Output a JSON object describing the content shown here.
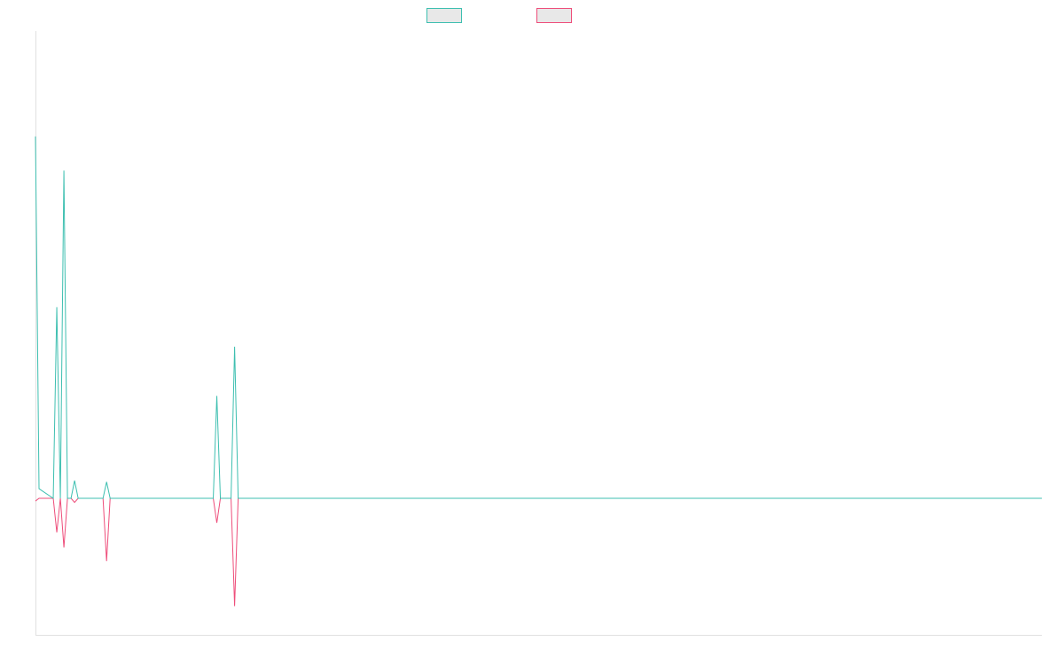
{
  "chart_data": {
    "type": "line",
    "title": "",
    "xlabel": "",
    "ylabel": "",
    "grid": false,
    "legend_placement": "top-center",
    "ylim": [
      -1,
      2.45
    ],
    "x": [
      0,
      1,
      2,
      3,
      4,
      5,
      6,
      7,
      8,
      9,
      10,
      11,
      12,
      13,
      14,
      15,
      16,
      17,
      18,
      19,
      20,
      21,
      22,
      23,
      24,
      25,
      26,
      27,
      28,
      29,
      30,
      31,
      32,
      33,
      34,
      35,
      36,
      37,
      38,
      39,
      40,
      41,
      42,
      43,
      44,
      45,
      46,
      47,
      48,
      49,
      50,
      51,
      52,
      53,
      54,
      55,
      56,
      57,
      58,
      59,
      60,
      61,
      62,
      63,
      64,
      65,
      66,
      67,
      68,
      69,
      70,
      71,
      72,
      73,
      74,
      75,
      76,
      77,
      78,
      79,
      80,
      81,
      82,
      83,
      84,
      85,
      86,
      87,
      88,
      89,
      90,
      91,
      92,
      93,
      94,
      95,
      96,
      97,
      98,
      99,
      100,
      101,
      102,
      103,
      104,
      105,
      106,
      107,
      108,
      109,
      110,
      111,
      112,
      113,
      114,
      115,
      116,
      117,
      118,
      119,
      120,
      121,
      122,
      123,
      124,
      125,
      126,
      127,
      128,
      129,
      130,
      131,
      132,
      133,
      134,
      135,
      136,
      137,
      138,
      139,
      140,
      141,
      142,
      143,
      144,
      145,
      146,
      147,
      148,
      149,
      150,
      151,
      152,
      153,
      154,
      155,
      156,
      157,
      158,
      159,
      160,
      161,
      162,
      163,
      164,
      165,
      166,
      167,
      168,
      169,
      170,
      171,
      172,
      173,
      174,
      175,
      176,
      177,
      178,
      179,
      180,
      181,
      182,
      183,
      184,
      185,
      186,
      187,
      188,
      189,
      190,
      191,
      192,
      193,
      194,
      195,
      196,
      197,
      198,
      199,
      200,
      201,
      202,
      203,
      204,
      205,
      206,
      207,
      208,
      209,
      210,
      211,
      212,
      213,
      214,
      215,
      216,
      217,
      218,
      219,
      220,
      221,
      222,
      223,
      224,
      225,
      226,
      227,
      228,
      229,
      230,
      231,
      232,
      233,
      234,
      235,
      236,
      237,
      238,
      239,
      240,
      241,
      242,
      243,
      244,
      245,
      246,
      247,
      248,
      249,
      250,
      251,
      252,
      253,
      254,
      255,
      256,
      257,
      258,
      259,
      260,
      261,
      262,
      263,
      264,
      265,
      266,
      267,
      268,
      269,
      270,
      271,
      272,
      273,
      274,
      275,
      276,
      277,
      278,
      279,
      280,
      281,
      282,
      283
    ],
    "series": [
      {
        "color": "#3dbfb0",
        "points": [
          [
            0,
            2.65
          ],
          [
            1,
            0.07
          ],
          [
            5,
            0
          ],
          [
            6,
            1.4
          ],
          [
            7,
            0
          ],
          [
            8,
            2.4
          ],
          [
            9,
            0
          ],
          [
            10,
            0
          ],
          [
            11,
            0.13
          ],
          [
            12,
            0
          ],
          [
            19,
            0
          ],
          [
            20,
            0.12
          ],
          [
            21,
            0
          ],
          [
            50,
            0
          ],
          [
            51,
            0.75
          ],
          [
            52,
            0
          ],
          [
            55,
            0
          ],
          [
            56,
            1.11
          ],
          [
            57,
            0
          ],
          [
            283,
            0
          ]
        ]
      },
      {
        "color": "#ee4d7a",
        "points": [
          [
            0,
            -0.02
          ],
          [
            1,
            0
          ],
          [
            5,
            0
          ],
          [
            6,
            -0.25
          ],
          [
            7,
            0
          ],
          [
            8,
            -0.36
          ],
          [
            9,
            0
          ],
          [
            10,
            0
          ],
          [
            11,
            -0.03
          ],
          [
            12,
            0
          ],
          [
            19,
            0
          ],
          [
            20,
            -0.46
          ],
          [
            21,
            0
          ],
          [
            50,
            0
          ],
          [
            51,
            -0.18
          ],
          [
            52,
            0
          ],
          [
            55,
            0
          ],
          [
            56,
            -0.79
          ],
          [
            57,
            0
          ],
          [
            283,
            0
          ]
        ]
      }
    ]
  }
}
